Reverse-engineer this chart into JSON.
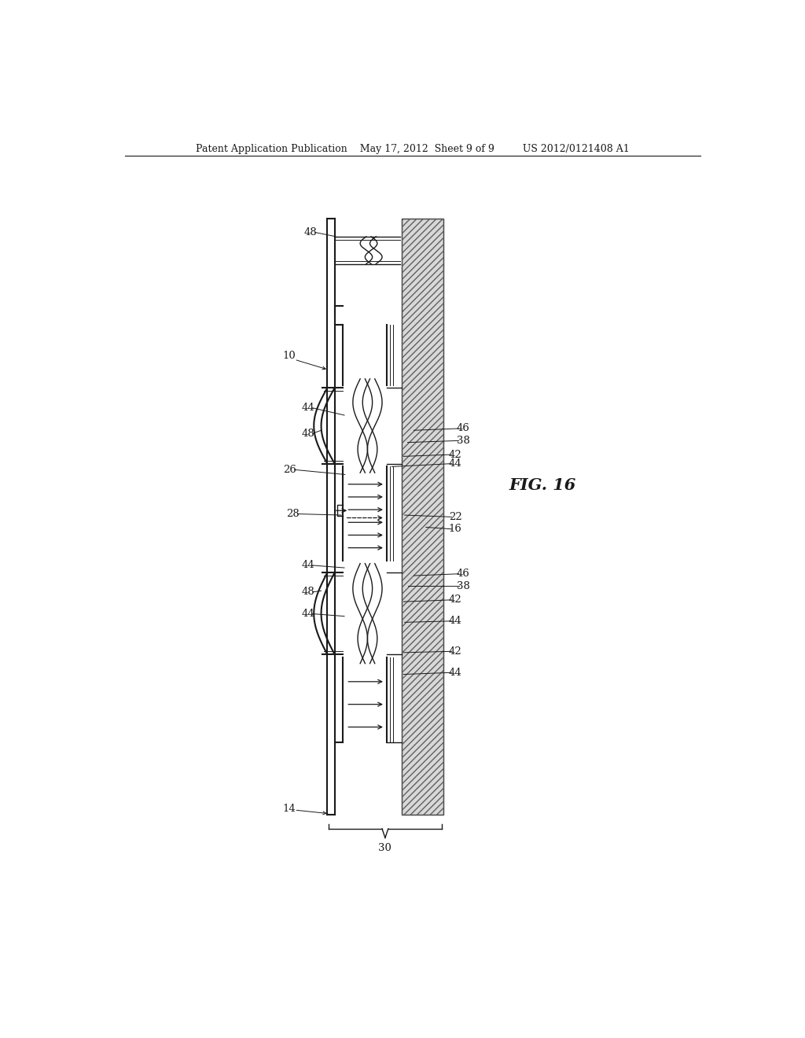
{
  "bg_color": "#ffffff",
  "line_color": "#1a1a1a",
  "header": "Patent Application Publication    May 17, 2012  Sheet 9 of 9         US 2012/0121408 A1",
  "fig_label": "FIG. 16"
}
